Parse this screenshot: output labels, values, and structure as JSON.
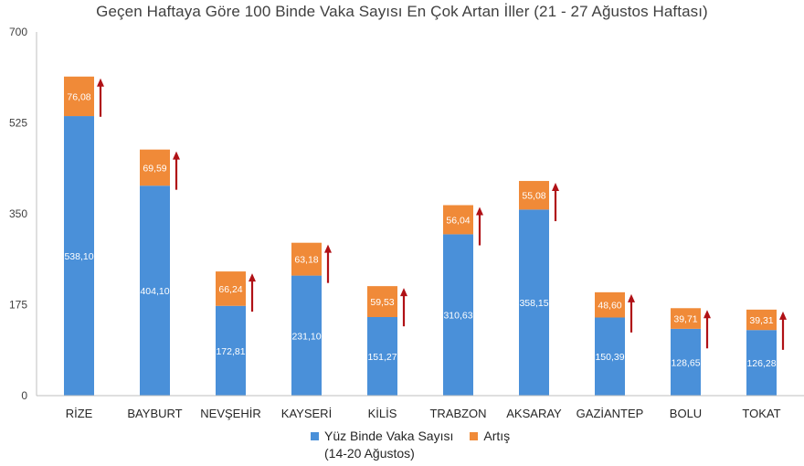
{
  "chart_data": {
    "type": "bar",
    "stacked": true,
    "title": "Geçen Haftaya Göre 100 Binde Vaka Sayısı En Çok Artan İller (21 - 27 Ağustos Haftası)",
    "categories": [
      "RİZE",
      "BAYBURT",
      "NEVŞEHİR",
      "KAYSERİ",
      "KİLİS",
      "TRABZON",
      "AKSARAY",
      "GAZİANTEP",
      "BOLU",
      "TOKAT"
    ],
    "series": [
      {
        "name": "Yüz Binde Vaka Sayısı\n(14-20 Ağustos)",
        "color": "#4a90d9",
        "values": [
          538.1,
          404.1,
          172.81,
          231.1,
          151.27,
          310.63,
          358.15,
          150.39,
          128.65,
          126.28
        ],
        "labels": [
          "538,10",
          "404,10",
          "172,81",
          "231,10",
          "151,27",
          "310,63",
          "358,15",
          "150,39",
          "128,65",
          "126,28"
        ]
      },
      {
        "name": "Artış",
        "color": "#f08a38",
        "values": [
          76.08,
          69.59,
          66.24,
          63.18,
          59.53,
          56.04,
          55.08,
          48.6,
          39.71,
          39.31
        ],
        "labels": [
          "76,08",
          "69,59",
          "66,24",
          "63,18",
          "59,53",
          "56,04",
          "55,08",
          "48,60",
          "39,71",
          "39,31"
        ]
      }
    ],
    "ylim": [
      0,
      700
    ],
    "yticks": [
      0,
      175,
      350,
      525,
      700
    ],
    "arrow_color": "#b01116",
    "legend_position": "bottom",
    "grid": false
  }
}
